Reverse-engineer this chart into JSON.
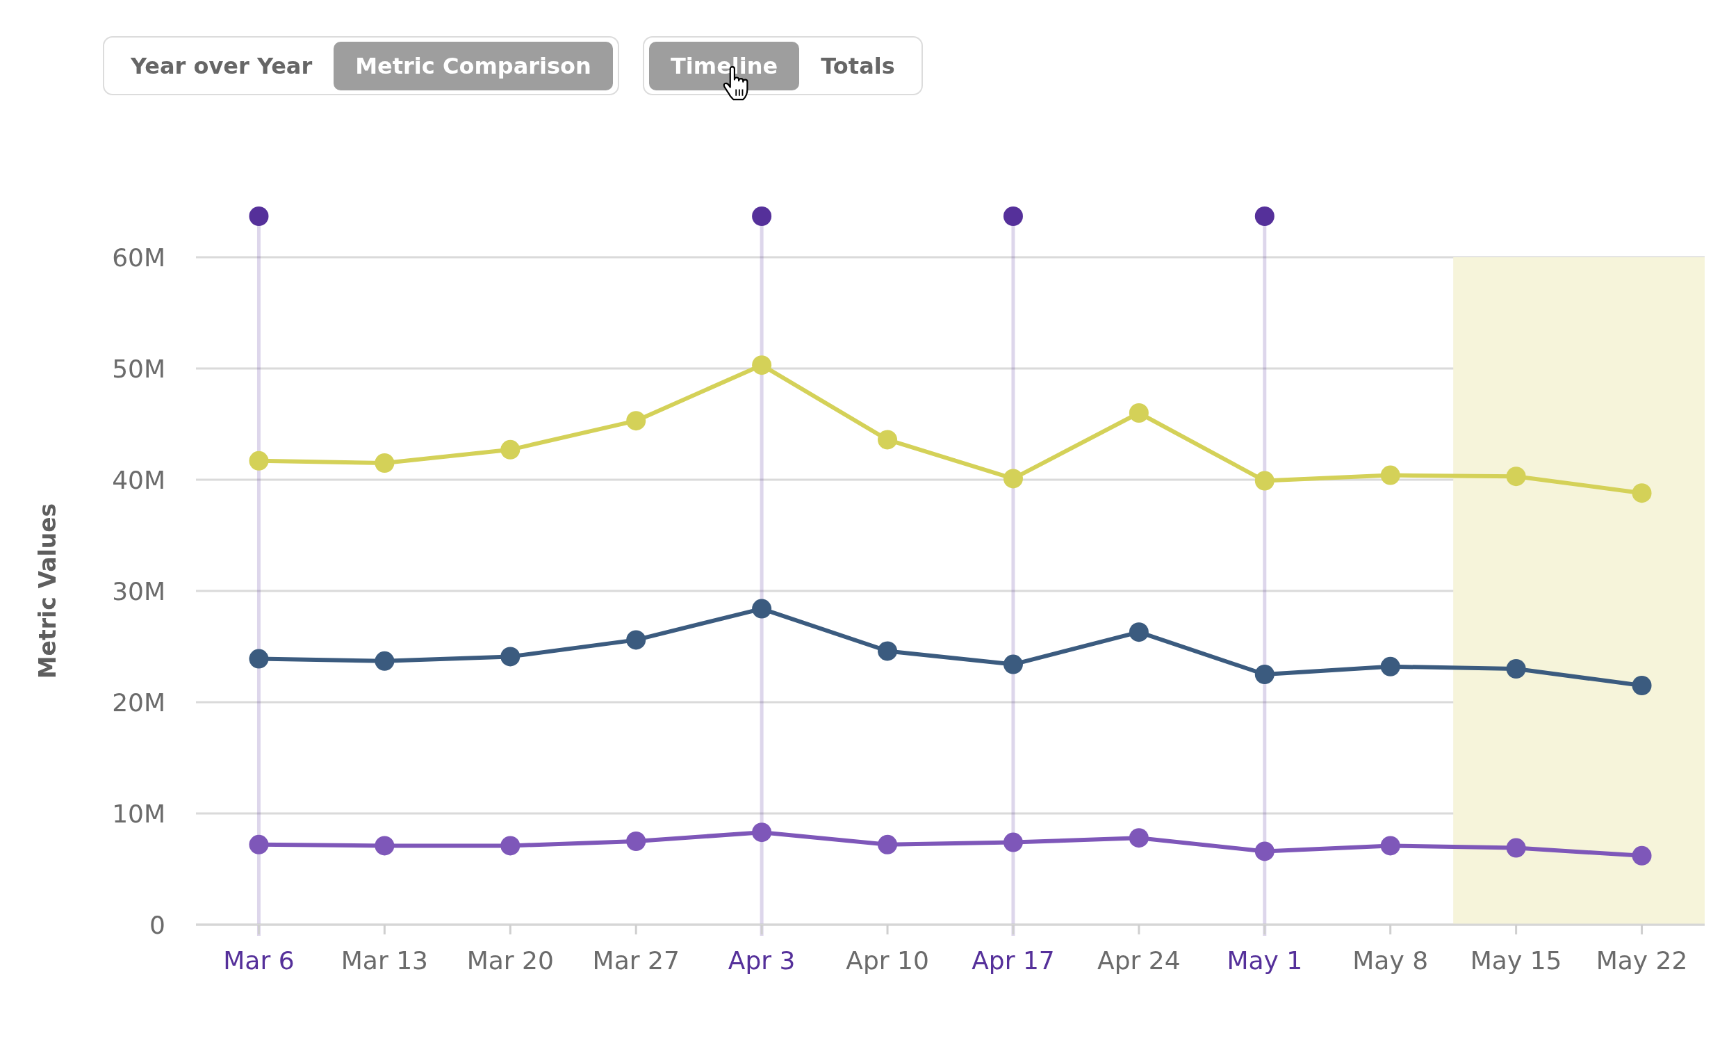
{
  "chart_data": {
    "type": "line",
    "ylabel": "Metric Values",
    "annotations": [
      "Year over Year",
      "Metric Comparison",
      "Timeline",
      "Totals"
    ],
    "categories": [
      "Mar 6",
      "Mar 13",
      "Mar 20",
      "Mar 27",
      "Apr 3",
      "Apr 10",
      "Apr 17",
      "Apr 24",
      "May 1",
      "May 8",
      "May 15",
      "May 22"
    ],
    "series": [
      {
        "color": "#d4d158",
        "values": [
          41.7,
          41.5,
          42.7,
          45.3,
          50.3,
          43.6,
          40.1,
          46.0,
          39.9,
          40.4,
          40.3,
          38.8
        ]
      },
      {
        "color": "#3b5b7f",
        "values": [
          23.9,
          23.7,
          24.1,
          25.6,
          28.4,
          24.6,
          23.4,
          26.3,
          22.5,
          23.2,
          23.0,
          21.5
        ]
      },
      {
        "color": "#7e57b9",
        "values": [
          7.2,
          7.1,
          7.1,
          7.5,
          8.3,
          7.2,
          7.4,
          7.8,
          6.6,
          7.1,
          6.9,
          6.2
        ]
      }
    ],
    "ylim": [
      0,
      60
    ],
    "yticks": [
      0,
      {
        "value": 10,
        "label": "10M"
      },
      {
        "value": 20,
        "label": "20M"
      },
      {
        "value": 30,
        "label": "30M"
      },
      {
        "value": 40,
        "label": "40M"
      },
      {
        "value": 50,
        "label": "50M"
      },
      {
        "value": 60,
        "label": "60M"
      }
    ],
    "grid": "y",
    "marker": "circle",
    "line_style": "solid",
    "ref_lines": [
      {
        "axis": "x",
        "value": "Mar 6",
        "color": "#55309a"
      },
      {
        "axis": "x",
        "value": "Apr 3",
        "color": "#55309a"
      },
      {
        "axis": "x",
        "value": "Apr 17",
        "color": "#55309a"
      },
      {
        "axis": "x",
        "value": "May 1",
        "color": "#55309a"
      }
    ],
    "bands": [
      {
        "axis": "x",
        "from": "May 15",
        "to": "May 22",
        "color": "#f6f4da"
      }
    ]
  }
}
